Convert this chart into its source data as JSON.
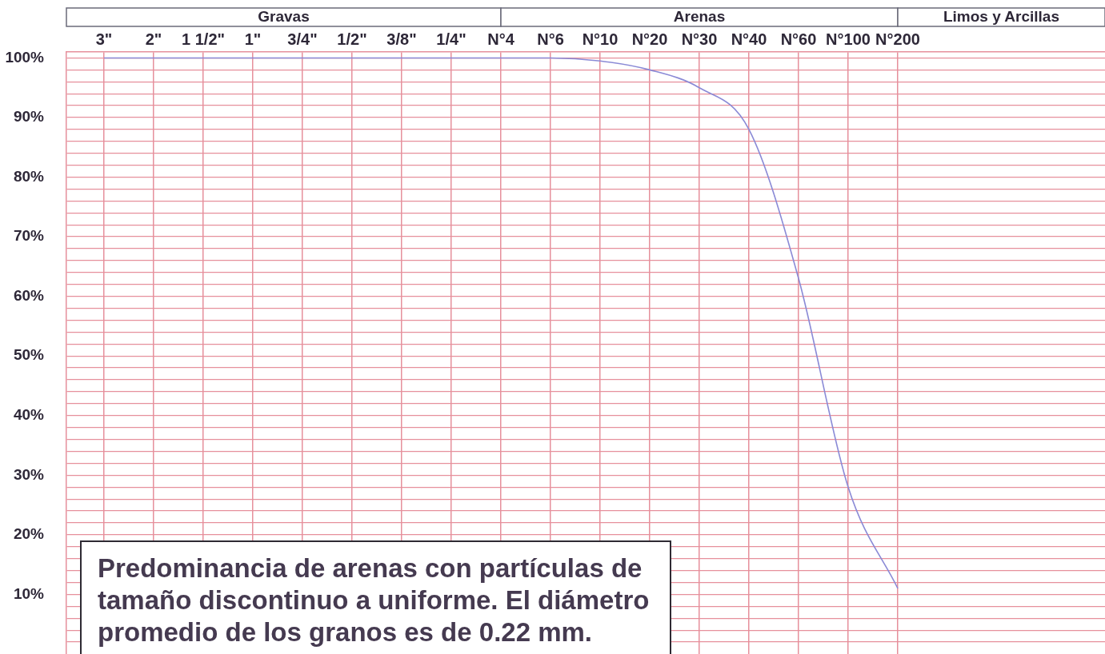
{
  "chart_data": {
    "type": "line",
    "categories": [
      "3\"",
      "2\"",
      "1 1/2\"",
      "1\"",
      "3/4\"",
      "1/2\"",
      "3/8\"",
      "1/4\"",
      "N°4",
      "N°6",
      "N°10",
      "N°20",
      "N°30",
      "N°40",
      "N°60",
      "N°100",
      "N°200"
    ],
    "values": [
      100,
      100,
      100,
      100,
      100,
      100,
      100,
      100,
      100,
      100,
      99.5,
      98,
      95,
      88,
      63,
      28,
      11
    ],
    "color": "#8a8ad6",
    "ylim": [
      0,
      101
    ],
    "yticks": [
      {
        "value": 2,
        "label": null
      },
      {
        "value": 4,
        "label": null
      },
      {
        "value": 6,
        "label": null
      },
      {
        "value": 8,
        "label": null
      },
      {
        "value": 10,
        "label": "10%"
      },
      {
        "value": 12,
        "label": null
      },
      {
        "value": 14,
        "label": null
      },
      {
        "value": 16,
        "label": null
      },
      {
        "value": 18,
        "label": null
      },
      {
        "value": 20,
        "label": "20%"
      },
      {
        "value": 22,
        "label": null
      },
      {
        "value": 24,
        "label": null
      },
      {
        "value": 26,
        "label": null
      },
      {
        "value": 28,
        "label": null
      },
      {
        "value": 30,
        "label": "30%"
      },
      {
        "value": 32,
        "label": null
      },
      {
        "value": 34,
        "label": null
      },
      {
        "value": 36,
        "label": null
      },
      {
        "value": 38,
        "label": null
      },
      {
        "value": 40,
        "label": "40%"
      },
      {
        "value": 42,
        "label": null
      },
      {
        "value": 44,
        "label": null
      },
      {
        "value": 46,
        "label": null
      },
      {
        "value": 48,
        "label": null
      },
      {
        "value": 50,
        "label": "50%"
      },
      {
        "value": 52,
        "label": null
      },
      {
        "value": 54,
        "label": null
      },
      {
        "value": 56,
        "label": null
      },
      {
        "value": 58,
        "label": null
      },
      {
        "value": 60,
        "label": "60%"
      },
      {
        "value": 62,
        "label": null
      },
      {
        "value": 64,
        "label": null
      },
      {
        "value": 66,
        "label": null
      },
      {
        "value": 68,
        "label": null
      },
      {
        "value": 70,
        "label": "70%"
      },
      {
        "value": 72,
        "label": null
      },
      {
        "value": 74,
        "label": null
      },
      {
        "value": 76,
        "label": null
      },
      {
        "value": 78,
        "label": null
      },
      {
        "value": 80,
        "label": "80%"
      },
      {
        "value": 82,
        "label": null
      },
      {
        "value": 84,
        "label": null
      },
      {
        "value": 86,
        "label": null
      },
      {
        "value": 88,
        "label": null
      },
      {
        "value": 90,
        "label": "90%"
      },
      {
        "value": 92,
        "label": null
      },
      {
        "value": 94,
        "label": null
      },
      {
        "value": 96,
        "label": null
      },
      {
        "value": 98,
        "label": null
      },
      {
        "value": 100,
        "label": "100%"
      }
    ],
    "grid": true,
    "legend": false,
    "marker": "none",
    "annotations": [
      "Gravas",
      "Arenas",
      "Limos y Arcillas",
      "Predominancia de arenas con partículas de tamaño discontinuo a uniforme. El diámetro promedio de los granos es de 0.22 mm."
    ]
  }
}
